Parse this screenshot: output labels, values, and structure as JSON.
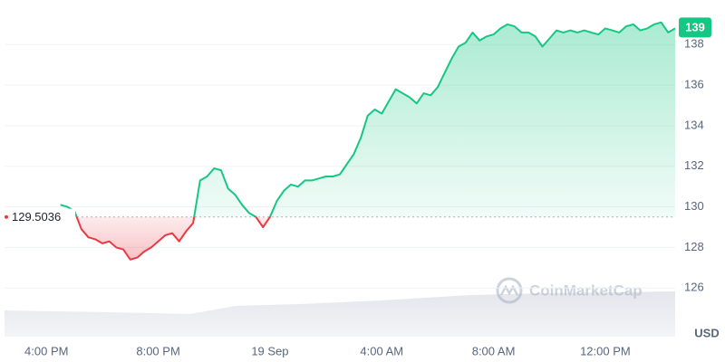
{
  "chart_data": {
    "type": "line",
    "categories": [
      null,
      null,
      null,
      null,
      null,
      null,
      "4:00 PM",
      null,
      null,
      null,
      null,
      null,
      null,
      null,
      null,
      null,
      null,
      null,
      null,
      null,
      null,
      null,
      "8:00 PM",
      null,
      null,
      null,
      null,
      null,
      null,
      null,
      null,
      null,
      null,
      null,
      null,
      null,
      null,
      null,
      "19 Sep",
      null,
      null,
      null,
      null,
      null,
      null,
      null,
      null,
      null,
      null,
      null,
      null,
      null,
      null,
      null,
      "4:00 AM",
      null,
      null,
      null,
      null,
      null,
      null,
      null,
      null,
      null,
      null,
      null,
      null,
      null,
      null,
      null,
      "8:00 AM",
      null,
      null,
      null,
      null,
      null,
      null,
      null,
      null,
      null,
      null,
      null,
      null,
      null,
      null,
      null,
      "12:00 PM",
      null,
      null,
      null,
      null,
      null,
      null,
      null,
      null,
      null,
      null
    ],
    "values": [
      null,
      null,
      null,
      null,
      null,
      null,
      null,
      null,
      130.1,
      130.0,
      129.8,
      128.9,
      128.5,
      128.4,
      128.2,
      128.3,
      128.0,
      127.9,
      127.4,
      127.5,
      127.8,
      128.0,
      128.3,
      128.6,
      128.7,
      128.3,
      128.8,
      129.2,
      131.3,
      131.5,
      131.9,
      131.8,
      130.9,
      130.6,
      130.1,
      129.7,
      129.5,
      129.0,
      129.5,
      130.3,
      130.8,
      131.1,
      131.0,
      131.3,
      131.3,
      131.4,
      131.5,
      131.5,
      131.6,
      132.1,
      132.6,
      133.4,
      134.5,
      134.8,
      134.6,
      135.2,
      135.8,
      135.6,
      135.4,
      135.1,
      135.6,
      135.5,
      135.9,
      136.6,
      137.3,
      137.9,
      138.1,
      138.6,
      138.2,
      138.4,
      138.5,
      138.8,
      139.0,
      138.9,
      138.6,
      138.6,
      138.4,
      137.9,
      138.3,
      138.7,
      138.6,
      138.7,
      138.6,
      138.7,
      138.6,
      138.5,
      138.8,
      138.7,
      138.6,
      138.9,
      139.0,
      138.7,
      138.8,
      139.0,
      139.1,
      138.6,
      138.8
    ],
    "baseline": 129.5036,
    "current_price": 139,
    "up_color": "#16c784",
    "down_color": "#ea3943",
    "ylim": [
      123.6,
      140.2
    ],
    "yticks": [
      126,
      128,
      130,
      132,
      134,
      136,
      138
    ],
    "y_axis_label": "USD",
    "watermark": "CoinMarketCap",
    "grid": true
  }
}
